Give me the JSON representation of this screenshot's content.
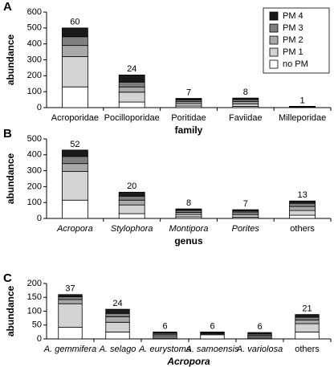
{
  "chart_data": [
    {
      "type": "bar",
      "stacked": true,
      "panel_label": "A",
      "xlabel": "family",
      "ylabel": "abundance",
      "categories": [
        "Acroporidae",
        "Pocilloporidae",
        "Poritidae",
        "Faviidae",
        "Milleporidae"
      ],
      "n_labels": [
        60,
        24,
        7,
        8,
        1
      ],
      "ylim": [
        0,
        600
      ],
      "yticks": [
        0,
        100,
        200,
        300,
        400,
        500,
        600
      ],
      "legend": "upper right",
      "series": [
        {
          "name": "no PM",
          "color": "#ffffff",
          "values": [
            130,
            35,
            10,
            8,
            1
          ]
        },
        {
          "name": "PM 1",
          "color": "#d3d3d3",
          "values": [
            190,
            62,
            15,
            16,
            2
          ]
        },
        {
          "name": "PM 2",
          "color": "#a9a9a9",
          "values": [
            70,
            33,
            12,
            14,
            2
          ]
        },
        {
          "name": "PM 3",
          "color": "#7f7f7f",
          "values": [
            55,
            30,
            11,
            12,
            2
          ]
        },
        {
          "name": "PM 4",
          "color": "#1a1a1a",
          "values": [
            55,
            45,
            10,
            10,
            1
          ]
        }
      ]
    },
    {
      "type": "bar",
      "stacked": true,
      "panel_label": "B",
      "xlabel": "genus",
      "ylabel": "abundance",
      "categories": [
        "Acropora",
        "Stylophora",
        "Montipora",
        "Porites",
        "others"
      ],
      "italic_categories": [
        true,
        true,
        true,
        true,
        false
      ],
      "n_labels": [
        52,
        20,
        8,
        7,
        13
      ],
      "ylim": [
        0,
        500
      ],
      "yticks": [
        0,
        100,
        200,
        300,
        400,
        500
      ],
      "series": [
        {
          "color": "#ffffff",
          "values": [
            115,
            30,
            10,
            8,
            20
          ]
        },
        {
          "color": "#d3d3d3",
          "values": [
            180,
            55,
            15,
            15,
            30
          ]
        },
        {
          "color": "#a9a9a9",
          "values": [
            50,
            30,
            13,
            12,
            25
          ]
        },
        {
          "color": "#7f7f7f",
          "values": [
            45,
            25,
            12,
            10,
            20
          ]
        },
        {
          "color": "#1a1a1a",
          "values": [
            40,
            25,
            10,
            10,
            15
          ]
        }
      ]
    },
    {
      "type": "bar",
      "stacked": true,
      "panel_label": "C",
      "xlabel": "Acropora",
      "xlabel_italic": true,
      "ylabel": "abundance",
      "categories": [
        "A. gemmifera",
        "A. selago",
        "A. eurystoma",
        "A. samoensis",
        "A. variolosa",
        "others"
      ],
      "italic_categories": [
        true,
        true,
        true,
        true,
        true,
        false
      ],
      "n_labels": [
        37,
        24,
        6,
        6,
        6,
        21
      ],
      "ylim": [
        0,
        200
      ],
      "yticks": [
        0,
        50,
        100,
        150,
        200
      ],
      "series": [
        {
          "color": "#ffffff",
          "values": [
            42,
            25,
            3,
            15,
            3,
            25
          ]
        },
        {
          "color": "#d3d3d3",
          "values": [
            85,
            35,
            6,
            3,
            5,
            30
          ]
        },
        {
          "color": "#a9a9a9",
          "values": [
            15,
            20,
            6,
            3,
            5,
            13
          ]
        },
        {
          "color": "#7f7f7f",
          "values": [
            10,
            12,
            5,
            2,
            5,
            10
          ]
        },
        {
          "color": "#1a1a1a",
          "values": [
            8,
            15,
            5,
            2,
            5,
            10
          ]
        }
      ]
    }
  ]
}
